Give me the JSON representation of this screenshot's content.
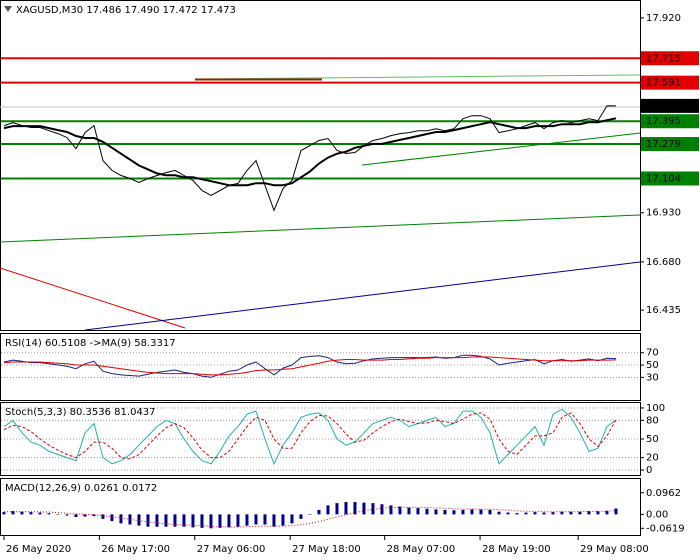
{
  "chart_data": [
    {
      "type": "line",
      "title": "XAGUSD,M30  17.486 17.490 17.472 17.473",
      "ylim": [
        16.334,
        18.006
      ],
      "yticks": [
        {
          "value": 17.92,
          "label": "17.920"
        },
        {
          "value": 16.93,
          "label": "16.930"
        },
        {
          "value": 16.68,
          "label": "16.680"
        },
        16.435
      ],
      "xlim": [
        -0.44,
        70.67
      ],
      "xticks": [
        {
          "value": 0,
          "label": "26 May 2020"
        },
        {
          "value": 10.6,
          "label": "26 May 17:00"
        },
        {
          "value": 21.2,
          "label": "27 May 06:00"
        },
        {
          "value": 31.8,
          "label": "27 May 18:00"
        },
        {
          "value": 42.3,
          "label": "28 May 07:00"
        },
        {
          "value": 52.9,
          "label": "28 May 19:00"
        },
        {
          "value": 63.8,
          "label": "29 May 08:00"
        }
      ],
      "levels": [
        {
          "value": 17.715,
          "color": "#e00000"
        },
        {
          "value": 17.591,
          "color": "#e00000"
        },
        {
          "value": 17.395,
          "color": "#008000"
        },
        {
          "value": 17.279,
          "color": "#008000"
        },
        {
          "value": 17.104,
          "color": "#008000"
        }
      ],
      "last": 17.473,
      "series": [
        {
          "color": "#000000",
          "style": "line",
          "values": [
            17.373,
            17.388,
            17.373,
            17.363,
            17.363,
            17.347,
            17.332,
            17.312,
            17.256,
            17.337,
            17.373,
            17.195,
            17.145,
            17.119,
            17.104,
            17.084,
            17.104,
            17.119,
            17.134,
            17.145,
            17.119,
            17.094,
            17.043,
            17.018,
            17.043,
            17.069,
            17.079,
            17.145,
            17.195,
            17.069,
            16.942,
            17.053,
            17.094,
            17.246,
            17.271,
            17.297,
            17.307,
            17.246,
            17.231,
            17.236,
            17.271,
            17.297,
            17.307,
            17.322,
            17.332,
            17.337,
            17.347,
            17.347,
            17.357,
            17.347,
            17.357,
            17.408,
            17.423,
            17.423,
            17.408,
            17.337,
            17.347,
            17.357,
            17.373,
            17.388,
            17.357,
            17.388,
            17.398,
            17.388,
            17.398,
            17.408,
            17.398,
            17.474,
            17.473
          ]
        },
        {
          "color": "#000000",
          "style": "bold",
          "values": [
            17.36,
            17.37,
            17.37,
            17.37,
            17.37,
            17.36,
            17.35,
            17.34,
            17.32,
            17.31,
            17.31,
            17.29,
            17.26,
            17.23,
            17.2,
            17.17,
            17.15,
            17.13,
            17.12,
            17.12,
            17.11,
            17.11,
            17.1,
            17.09,
            17.08,
            17.07,
            17.07,
            17.07,
            17.08,
            17.08,
            17.07,
            17.07,
            17.08,
            17.11,
            17.14,
            17.18,
            17.21,
            17.23,
            17.24,
            17.26,
            17.27,
            17.28,
            17.28,
            17.29,
            17.3,
            17.31,
            17.32,
            17.33,
            17.34,
            17.34,
            17.35,
            17.36,
            17.37,
            17.38,
            17.39,
            17.38,
            17.37,
            17.36,
            17.36,
            17.37,
            17.37,
            17.37,
            17.38,
            17.38,
            17.38,
            17.39,
            17.39,
            17.4,
            17.41
          ]
        }
      ]
    },
    {
      "type": "line",
      "title": "RSI(14) 60.5108 ->MA(9) 58.3317",
      "ylim": [
        -6.8,
        100.4
      ],
      "yticks": [
        70,
        50,
        30
      ],
      "grid": true,
      "series": [
        {
          "color": "#1a237e",
          "style": "line",
          "values": [
            55,
            58,
            56,
            54,
            54,
            52,
            50,
            48,
            44,
            52,
            56,
            40,
            36,
            34,
            33,
            32,
            35,
            38,
            40,
            42,
            38,
            36,
            32,
            30,
            35,
            40,
            42,
            50,
            55,
            44,
            34,
            45,
            50,
            62,
            64,
            65,
            62,
            55,
            52,
            53,
            57,
            60,
            61,
            62,
            62,
            62,
            62,
            62,
            63,
            61,
            62,
            66,
            66,
            64,
            60,
            50,
            53,
            55,
            57,
            59,
            52,
            57,
            59,
            56,
            58,
            60,
            57,
            61,
            60.5108
          ]
        },
        {
          "color": "#e00000",
          "style": "line",
          "values": [
            54,
            55,
            55,
            55,
            55,
            54,
            53,
            52,
            50,
            50,
            50,
            48,
            46,
            44,
            42,
            40,
            38,
            37,
            36,
            36,
            36,
            36,
            35,
            34,
            34,
            35,
            36,
            38,
            41,
            42,
            42,
            43,
            44,
            47,
            50,
            53,
            56,
            58,
            59,
            59,
            58,
            58,
            58,
            59,
            59,
            60,
            61,
            61,
            62,
            62,
            62,
            62,
            63,
            63,
            63,
            62,
            61,
            60,
            59,
            58,
            57,
            57,
            57,
            57,
            57,
            58,
            58,
            58,
            58.3317
          ]
        }
      ]
    },
    {
      "type": "line",
      "title": "Stoch(5,3,3) 80.3536 81.0437",
      "ylim": [
        -8,
        108
      ],
      "yticks": [
        100,
        80,
        50,
        20,
        0
      ],
      "grid": true,
      "series": [
        {
          "color": "#20b2aa",
          "style": "line",
          "values": [
            70,
            80,
            60,
            45,
            40,
            30,
            25,
            20,
            15,
            60,
            75,
            20,
            10,
            15,
            25,
            40,
            55,
            70,
            80,
            75,
            50,
            30,
            15,
            10,
            30,
            55,
            70,
            90,
            95,
            50,
            10,
            40,
            60,
            85,
            90,
            92,
            80,
            50,
            40,
            45,
            60,
            75,
            80,
            85,
            80,
            70,
            75,
            80,
            85,
            70,
            75,
            95,
            95,
            85,
            60,
            10,
            25,
            40,
            55,
            70,
            40,
            90,
            98,
            85,
            60,
            30,
            35,
            70,
            80.3536
          ]
        },
        {
          "color": "#e00000",
          "style": "dashed",
          "values": [
            65,
            72,
            70,
            62,
            50,
            40,
            32,
            25,
            20,
            30,
            45,
            45,
            35,
            20,
            18,
            25,
            40,
            55,
            68,
            75,
            68,
            52,
            32,
            20,
            20,
            30,
            50,
            70,
            85,
            80,
            50,
            35,
            35,
            60,
            78,
            88,
            87,
            75,
            58,
            45,
            48,
            60,
            70,
            78,
            82,
            78,
            75,
            76,
            80,
            78,
            75,
            82,
            90,
            92,
            82,
            50,
            30,
            25,
            40,
            55,
            55,
            60,
            85,
            92,
            75,
            50,
            38,
            55,
            81.0437
          ]
        }
      ]
    },
    {
      "type": "bar",
      "title": "MACD(12,26,9) 0.0261 0.0172",
      "ylim": [
        -0.0918,
        0.1574
      ],
      "yticks": [
        0.0962,
        {
          "value": 0,
          "label": "0.00"
        },
        -0.0619
      ],
      "series": [
        {
          "color": "#00008b",
          "style": "bar",
          "values": [
            0.01,
            0.015,
            0.012,
            0.01,
            0.008,
            0.005,
            0,
            -0.005,
            -0.012,
            -0.01,
            -0.008,
            -0.02,
            -0.03,
            -0.04,
            -0.045,
            -0.05,
            -0.055,
            -0.055,
            -0.055,
            -0.055,
            -0.055,
            -0.058,
            -0.06,
            -0.062,
            -0.06,
            -0.058,
            -0.055,
            -0.05,
            -0.045,
            -0.045,
            -0.055,
            -0.05,
            -0.04,
            -0.02,
            0,
            0.02,
            0.04,
            0.05,
            0.055,
            0.055,
            0.052,
            0.05,
            0.045,
            0.04,
            0.035,
            0.03,
            0.028,
            0.025,
            0.022,
            0.02,
            0.018,
            0.02,
            0.022,
            0.022,
            0.02,
            0.012,
            0.008,
            0.006,
            0.008,
            0.01,
            0.008,
            0.01,
            0.012,
            0.012,
            0.012,
            0.014,
            0.014,
            0.016,
            0.0261
          ]
        },
        {
          "color": "#e00000",
          "style": "dotted",
          "values": [
            0.012,
            0.012,
            0.012,
            0.012,
            0.011,
            0.01,
            0.008,
            0.005,
            0.002,
            0,
            -0.002,
            -0.006,
            -0.011,
            -0.016,
            -0.022,
            -0.028,
            -0.033,
            -0.038,
            -0.042,
            -0.045,
            -0.047,
            -0.049,
            -0.051,
            -0.053,
            -0.055,
            -0.056,
            -0.056,
            -0.055,
            -0.054,
            -0.052,
            -0.052,
            -0.052,
            -0.05,
            -0.046,
            -0.04,
            -0.032,
            -0.022,
            -0.012,
            -0.002,
            0.008,
            0.016,
            0.022,
            0.027,
            0.03,
            0.031,
            0.031,
            0.031,
            0.03,
            0.029,
            0.027,
            0.025,
            0.024,
            0.024,
            0.023,
            0.023,
            0.021,
            0.019,
            0.016,
            0.014,
            0.013,
            0.012,
            0.012,
            0.012,
            0.012,
            0.012,
            0.013,
            0.013,
            0.014,
            0.0172
          ]
        }
      ]
    }
  ]
}
